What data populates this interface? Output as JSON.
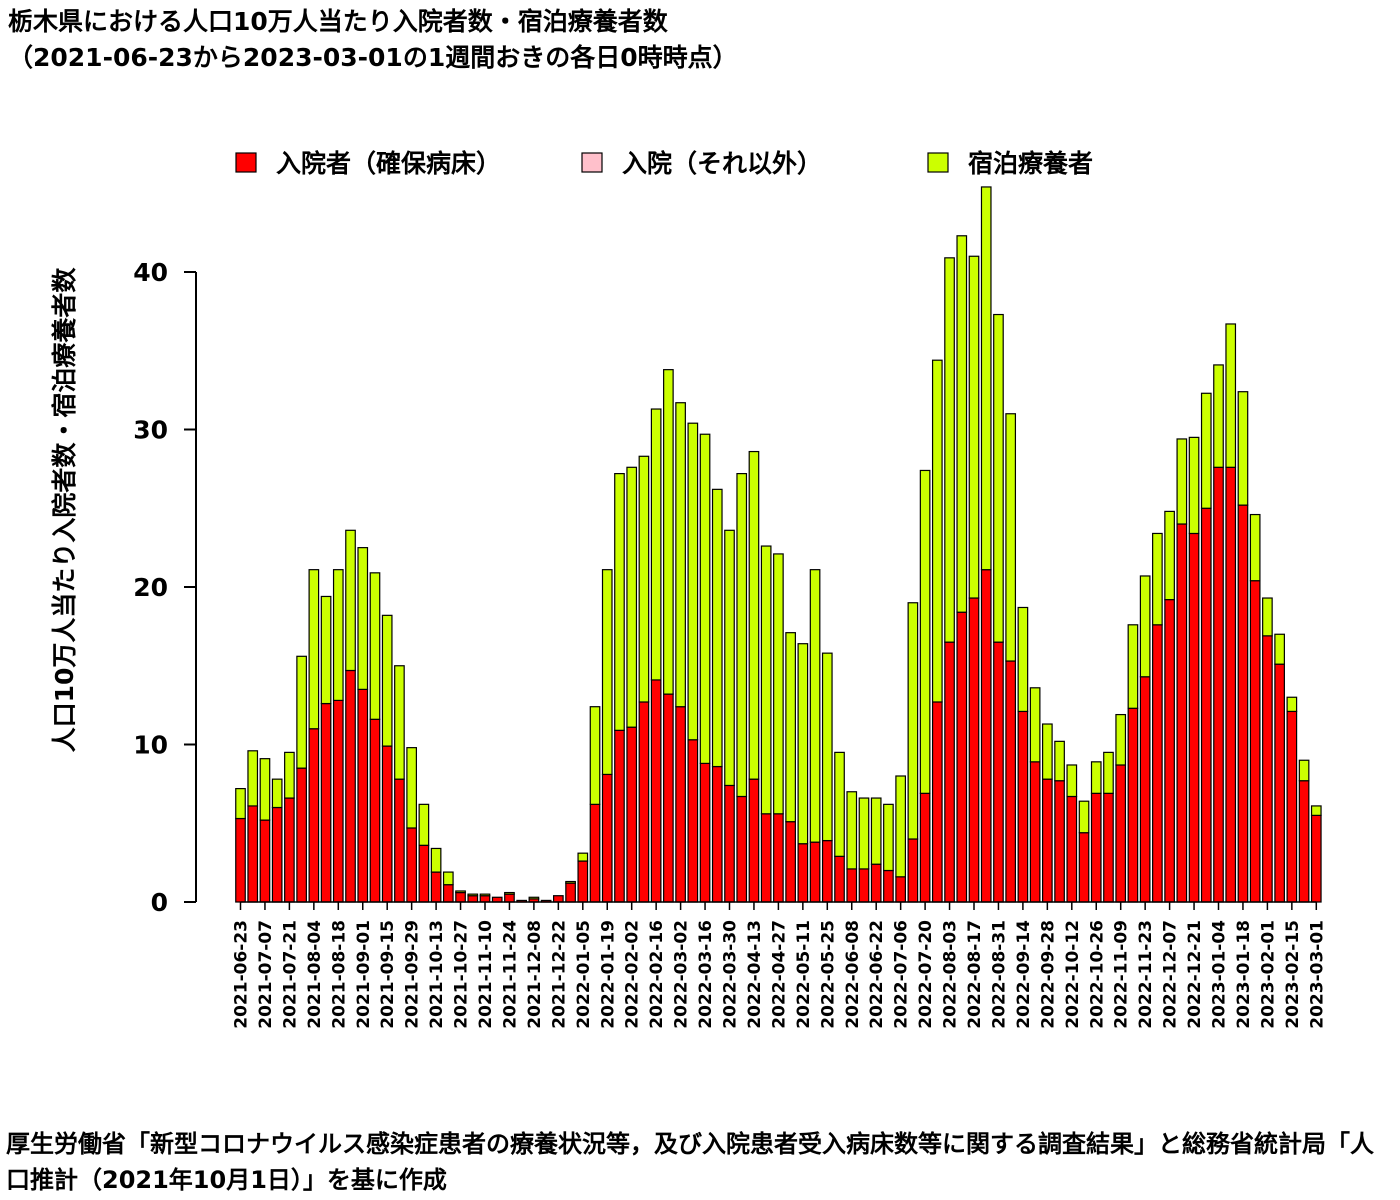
{
  "page": {
    "title_line1": "栃木県における人口10万人当たり入院者数・宿泊療養者数",
    "title_line2": "（2021-06-23から2023-03-01の1週間おきの各日0時時点）",
    "source_note": "厚生労働省「新型コロナウイルス感染症患者の療養状況等，及び入院患者受入病床数等に関する調査結果」と総務省統計局「人口推計（2021年10月1日）」を基に作成"
  },
  "chart_data": {
    "type": "bar",
    "stacked": true,
    "ylabel": "人口10万人当たり入院者数・宿泊療養者数",
    "xlabel": "",
    "ylim": [
      0,
      46
    ],
    "yticks": [
      0,
      10,
      20,
      30,
      40
    ],
    "legend": "top",
    "categories": [
      "2021-06-23",
      "2021-06-30",
      "2021-07-07",
      "2021-07-14",
      "2021-07-21",
      "2021-07-28",
      "2021-08-04",
      "2021-08-11",
      "2021-08-18",
      "2021-08-25",
      "2021-09-01",
      "2021-09-08",
      "2021-09-15",
      "2021-09-22",
      "2021-09-29",
      "2021-10-06",
      "2021-10-13",
      "2021-10-20",
      "2021-10-27",
      "2021-11-03",
      "2021-11-10",
      "2021-11-17",
      "2021-11-24",
      "2021-12-01",
      "2021-12-08",
      "2021-12-15",
      "2021-12-22",
      "2021-12-29",
      "2022-01-05",
      "2022-01-12",
      "2022-01-19",
      "2022-01-26",
      "2022-02-02",
      "2022-02-09",
      "2022-02-16",
      "2022-02-23",
      "2022-03-02",
      "2022-03-09",
      "2022-03-16",
      "2022-03-23",
      "2022-03-30",
      "2022-04-06",
      "2022-04-13",
      "2022-04-20",
      "2022-04-27",
      "2022-05-04",
      "2022-05-11",
      "2022-05-18",
      "2022-05-25",
      "2022-06-01",
      "2022-06-08",
      "2022-06-15",
      "2022-06-22",
      "2022-06-29",
      "2022-07-06",
      "2022-07-13",
      "2022-07-20",
      "2022-07-27",
      "2022-08-03",
      "2022-08-10",
      "2022-08-17",
      "2022-08-24",
      "2022-08-31",
      "2022-09-07",
      "2022-09-14",
      "2022-09-21",
      "2022-09-28",
      "2022-10-05",
      "2022-10-12",
      "2022-10-19",
      "2022-10-26",
      "2022-11-02",
      "2022-11-09",
      "2022-11-16",
      "2022-11-23",
      "2022-11-30",
      "2022-12-07",
      "2022-12-14",
      "2022-12-21",
      "2022-12-28",
      "2023-01-04",
      "2023-01-11",
      "2023-01-18",
      "2023-01-25",
      "2023-02-01",
      "2023-02-08",
      "2023-02-15",
      "2023-02-22",
      "2023-03-01"
    ],
    "tick_labels": [
      "2021-06-23",
      "2021-07-07",
      "2021-07-21",
      "2021-08-04",
      "2021-08-18",
      "2021-09-01",
      "2021-09-15",
      "2021-09-29",
      "2021-10-13",
      "2021-10-27",
      "2021-11-10",
      "2021-11-24",
      "2021-12-08",
      "2021-12-22",
      "2022-01-05",
      "2022-01-19",
      "2022-02-02",
      "2022-02-16",
      "2022-03-02",
      "2022-03-16",
      "2022-03-30",
      "2022-04-13",
      "2022-04-27",
      "2022-05-11",
      "2022-05-25",
      "2022-06-08",
      "2022-06-22",
      "2022-07-06",
      "2022-07-20",
      "2022-08-03",
      "2022-08-17",
      "2022-08-31",
      "2022-09-14",
      "2022-09-28",
      "2022-10-12",
      "2022-10-26",
      "2022-11-09",
      "2022-11-23",
      "2022-12-07",
      "2022-12-21",
      "2023-01-04",
      "2023-01-18",
      "2023-02-01",
      "2023-02-15",
      "2023-03-01"
    ],
    "series": [
      {
        "name": "入院者（確保病床）",
        "color": "#ff0000",
        "values": [
          5.3,
          6.1,
          5.2,
          6.0,
          6.6,
          8.5,
          11.0,
          12.6,
          12.8,
          14.7,
          13.5,
          11.6,
          9.9,
          7.8,
          4.7,
          3.6,
          1.9,
          1.1,
          0.6,
          0.4,
          0.4,
          0.3,
          0.5,
          0.1,
          0.2,
          0.1,
          0.4,
          1.2,
          2.6,
          6.2,
          8.1,
          10.9,
          11.1,
          12.7,
          14.1,
          13.2,
          12.4,
          10.3,
          8.8,
          8.6,
          7.4,
          6.7,
          7.8,
          5.6,
          5.6,
          5.1,
          3.7,
          3.8,
          3.9,
          2.9,
          2.1,
          2.1,
          2.4,
          2.0,
          1.6,
          4.0,
          6.9,
          12.7,
          16.5,
          18.4,
          19.3,
          21.1,
          16.5,
          15.3,
          12.1,
          8.9,
          7.8,
          7.7,
          6.7,
          4.4,
          6.9,
          6.9,
          8.7,
          12.3,
          14.3,
          17.6,
          19.2,
          24.0,
          23.4,
          25.0,
          27.6,
          27.6,
          25.2,
          20.4,
          16.9,
          15.1,
          12.1,
          7.7,
          5.5
        ]
      },
      {
        "name": "入院（それ以外）",
        "color": "#ffc0cb",
        "values": [
          0,
          0,
          0,
          0,
          0,
          0,
          0,
          0,
          0,
          0,
          0,
          0,
          0,
          0,
          0,
          0,
          0,
          0,
          0,
          0,
          0,
          0,
          0,
          0,
          0,
          0,
          0,
          0,
          0,
          0,
          0,
          0,
          0,
          0,
          0,
          0,
          0,
          0,
          0,
          0,
          0,
          0,
          0,
          0,
          0,
          0,
          0,
          0,
          0,
          0,
          0,
          0,
          0,
          0,
          0,
          0,
          0,
          0,
          0,
          0,
          0,
          0,
          0,
          0,
          0,
          0,
          0,
          0,
          0,
          0,
          0,
          0,
          0,
          0,
          0,
          0,
          0,
          0,
          0,
          0,
          0,
          0,
          0,
          0,
          0,
          0,
          0,
          0,
          0
        ]
      },
      {
        "name": "宿泊療養者",
        "color": "#ccff00",
        "values": [
          1.9,
          3.5,
          3.9,
          1.8,
          2.9,
          7.1,
          10.1,
          6.8,
          8.3,
          8.9,
          9.0,
          9.3,
          8.3,
          7.2,
          5.1,
          2.6,
          1.5,
          0.8,
          0.1,
          0.1,
          0.1,
          0.0,
          0.1,
          0.0,
          0.1,
          0.0,
          0.0,
          0.1,
          0.5,
          6.2,
          13.0,
          16.3,
          16.5,
          15.6,
          17.2,
          20.6,
          19.3,
          20.1,
          20.9,
          17.6,
          16.2,
          20.5,
          20.8,
          17.0,
          16.5,
          12.0,
          12.7,
          17.3,
          11.9,
          6.6,
          4.9,
          4.5,
          4.2,
          4.2,
          6.4,
          15.0,
          20.5,
          21.7,
          24.4,
          23.9,
          21.7,
          24.3,
          20.8,
          15.7,
          6.6,
          4.7,
          3.5,
          2.5,
          2.0,
          2.0,
          2.0,
          2.6,
          3.2,
          5.3,
          6.4,
          5.8,
          5.6,
          5.4,
          6.1,
          7.3,
          6.5,
          9.1,
          7.2,
          4.2,
          2.4,
          1.9,
          0.9,
          1.3,
          0.6
        ]
      }
    ]
  }
}
